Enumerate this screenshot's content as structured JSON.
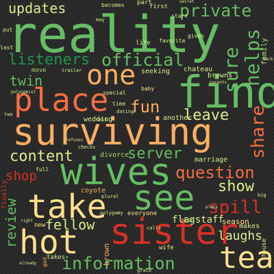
{
  "palette": {
    "dark_green": "#1a9850",
    "green": "#66bd63",
    "light_green": "#a6d96a",
    "pale_green": "#d9ef8b",
    "peach": "#fdae61",
    "orange": "#f46d43",
    "red": "#d73027",
    "dark_red": "#a50026",
    "cream": "#fee08b"
  },
  "words": {
    "reality": "reality",
    "surviving": "surviving",
    "find": "find",
    "sister": "sister",
    "wives": "wives",
    "place": "place",
    "take": "take",
    "see": "see",
    "hot": "hot",
    "tea": "tea",
    "one": "one",
    "information": "information",
    "official": "official",
    "listeners": "listeners",
    "private": "private",
    "updates": "updates",
    "helps": "helps",
    "sure": "sure",
    "content": "content",
    "server": "server",
    "question": "question",
    "show": "show",
    "spill": "spill",
    "leave": "leave",
    "share": "share",
    "fun": "fun",
    "twin": "twin",
    "fellow": "fellow",
    "review": "review",
    "shop": "shop",
    "laughs": "laughs",
    "flagstaff": "flagstaff",
    "season": "season",
    "marriage": "marriage",
    "brown": "brown",
    "wedding": "wedding",
    "coyote": "coyote",
    "divorce": "divorce",
    "another": "another",
    "seeking": "seeking",
    "chateau": "chateau",
    "browns": "browns",
    "makes": "makes",
    "family": "family",
    "everyone": "everyone",
    "case": "case",
    "wife": "wife",
    "takes": "takes",
    "new": "new",
    "life": "life",
    "part": "part",
    "first": "first",
    "becomes": "becomes",
    "gives": "gives",
    "favorite": "favorite",
    "special": "special",
    "time": "time",
    "baby": "baby",
    "trailer": "trailer",
    "move": "move",
    "last": "last",
    "put": "put",
    "may": "may",
    "full": "full",
    "finally": "finally",
    "plural": "plural",
    "dating": "dating",
    "tell": "tell",
    "checks": "checks",
    "calls": "calls",
    "grace": "grace",
    "house": "house",
    "big": "big",
    "polygamy": "polygamy",
    "already": "already",
    "god": "god",
    "start": "start",
    "media": "media",
    "parents": "parents",
    "secret": "secret",
    "set": "set",
    "plans": "plans",
    "refuses": "refuses",
    "date": "date",
    "need": "need",
    "two": "two",
    "back": "back",
    "kids": "kids",
    "ring": "ring",
    "truth": "truth",
    "home": "home",
    "talk": "talk",
    "night": "night",
    "vegas": "vegas",
    "school": "school",
    "rest": "rest",
    "kody": "kody",
    "news": "news",
    "moves": "moves",
    "fans": "fans",
    "trip": "trip",
    "party": "party",
    "bar": "bar",
    "job": "job",
    "help": "help",
    "room": "room",
    "away": "away",
    "life2": "life",
    "truck": "truck",
    "pretends": "pretends",
    "proposes": "proposes",
    "friend": "friend",
    "visit": "visit",
    "does": "does",
    "gets": "gets",
    "polygamist": "polygamist",
    "little": "little",
    "women": "women",
    "dinner": "dinner",
    "says": "says",
    "meet": "meet",
    "old": "old",
    "nice": "nice",
    "lot": "lot",
    "wants": "wants",
    "thinks": "thinks",
    "right": "right",
    "money": "money",
    "sun": "sun",
    "own": "own",
    "learn": "learn"
  }
}
